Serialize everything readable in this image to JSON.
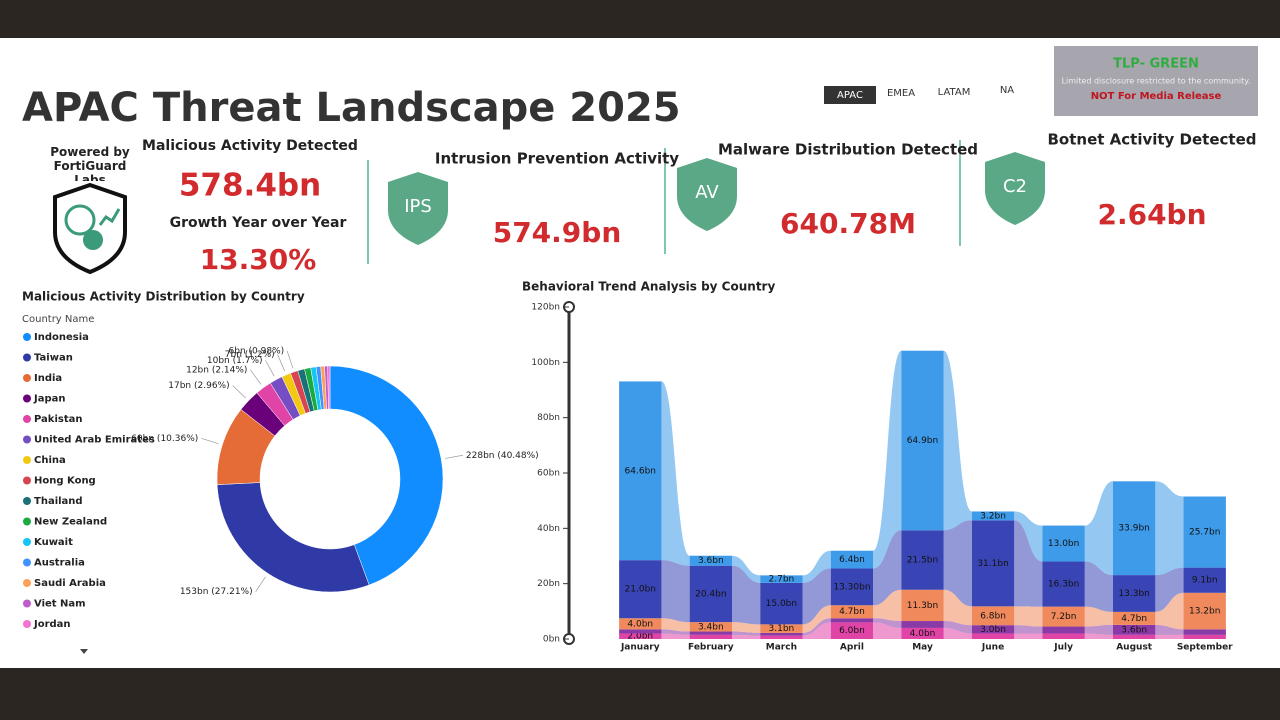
{
  "header": {
    "title": "APAC Threat Landscape 2025",
    "tabs": [
      "APAC",
      "EMEA",
      "LATAM",
      "NA"
    ],
    "powered_by": "Powered by FortiGuard Labs"
  },
  "tlp": {
    "level": "TLP- GREEN",
    "note": "Limited disclosure restricted to the community.",
    "warning": "NOT For Media Release"
  },
  "kpis": [
    {
      "label": "Malicious Activity Detected",
      "value": "578.4bn"
    },
    {
      "label": "Growth Year over Year",
      "value": "13.30%"
    },
    {
      "icon": "IPS",
      "label": "Intrusion Prevention Activity",
      "value": "574.9bn"
    },
    {
      "icon": "AV",
      "label": "Malware Distribution Detected",
      "value": "640.78M"
    },
    {
      "icon": "C2",
      "label": "Botnet Activity Detected",
      "value": "2.64bn"
    }
  ],
  "chart_data": [
    {
      "type": "donut",
      "title": "Malicious Activity Distribution by Country",
      "legend_title": "Country Name",
      "categories": [
        "Indonesia",
        "Taiwan",
        "India",
        "Japan",
        "Pakistan",
        "United Arab Emirates",
        "China",
        "Hong Kong",
        "Thailand",
        "New Zealand",
        "Kuwait",
        "Australia",
        "Saudi Arabia",
        "Viet Nam",
        "Jordan"
      ],
      "colors": [
        "#118dff",
        "#2f3aa6",
        "#e66c37",
        "#6b007b",
        "#e044a7",
        "#744ec2",
        "#f2c811",
        "#d64550",
        "#197278",
        "#1aab40",
        "#15c6f4",
        "#4092ff",
        "#ffa058",
        "#be5dc9",
        "#f472d0"
      ],
      "values": [
        40.48,
        27.21,
        10.36,
        2.96,
        2.14,
        1.7,
        1.2,
        0.98,
        0.9,
        0.8,
        0.7,
        0.6,
        0.5,
        0.4,
        0.3
      ],
      "value_labels": [
        "228bn (40.48%)",
        "153bn (27.21%)",
        "60bn (10.36%)",
        "17bn (2.96%)",
        "12bn (2.14%)",
        "10bn (1.7%)",
        "7bn (1.2%)",
        "6bn (0.98%)",
        null,
        null,
        null,
        null,
        null,
        null,
        null
      ]
    },
    {
      "type": "ribbon",
      "title": "Behavioral Trend Analysis by Country",
      "categories": [
        "January",
        "February",
        "March",
        "April",
        "May",
        "June",
        "July",
        "August",
        "September"
      ],
      "ylim": [
        0,
        120
      ],
      "yticks": [
        {
          "value": 0,
          "label": "0bn"
        },
        {
          "value": 20,
          "label": "20bn"
        },
        {
          "value": 40,
          "label": "40bn"
        },
        {
          "value": 60,
          "label": "60bn"
        },
        {
          "value": 80,
          "label": "80bn"
        },
        {
          "value": 100,
          "label": "100bn"
        },
        {
          "value": 120,
          "label": "120bn"
        }
      ],
      "series": [
        {
          "name": "Pakistan",
          "color": "#e044a7",
          "values": [
            2.0,
            1.5,
            1.2,
            6.0,
            4.0,
            2.0,
            2.0,
            1.5,
            1.5
          ],
          "value_labels": [
            "2.0bn",
            null,
            null,
            "6.0bn",
            "4.0bn",
            null,
            null,
            null,
            null
          ]
        },
        {
          "name": "Japan",
          "color": "#8a3aa6",
          "values": [
            1.5,
            1.2,
            1.0,
            1.5,
            2.5,
            3.0,
            2.5,
            3.6,
            2.0
          ],
          "value_labels": [
            null,
            null,
            null,
            null,
            null,
            "3.0bn",
            null,
            "3.6bn",
            null
          ]
        },
        {
          "name": "India",
          "color": "#f08a5d",
          "values": [
            4.0,
            3.4,
            3.1,
            4.7,
            11.3,
            6.8,
            7.2,
            4.7,
            13.2
          ],
          "value_labels": [
            "4.0bn",
            "3.4bn",
            "3.1bn",
            "4.7bn",
            "11.3bn",
            "6.8bn",
            "7.2bn",
            "4.7bn",
            "13.2bn"
          ]
        },
        {
          "name": "Taiwan",
          "color": "#3a45b5",
          "values": [
            21.0,
            20.4,
            15.0,
            13.3,
            21.5,
            31.1,
            16.3,
            13.3,
            9.1
          ],
          "value_labels": [
            "21.0bn",
            "20.4bn",
            "15.0bn",
            "13.30bn",
            "21.5bn",
            "31.1bn",
            "16.3bn",
            "13.3bn",
            "9.1bn"
          ]
        },
        {
          "name": "Indonesia",
          "color": "#3d9be9",
          "values": [
            64.6,
            3.6,
            2.7,
            6.4,
            64.9,
            3.2,
            13.0,
            33.9,
            25.7
          ],
          "value_labels": [
            "64.6bn",
            "3.6bn",
            "2.7bn",
            "6.4bn",
            "64.9bn",
            "3.2bn",
            "13.0bn",
            "33.9bn",
            "25.7bn"
          ]
        }
      ]
    }
  ]
}
